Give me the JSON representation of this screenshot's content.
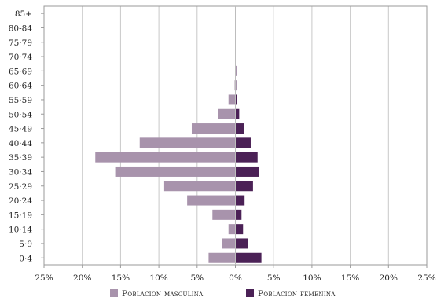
{
  "chart_data": {
    "type": "bar",
    "orientation": "horizontal",
    "layout": "population-pyramid",
    "categories": [
      "85+",
      "80-84",
      "75-79",
      "70-74",
      "65-69",
      "60-64",
      "55-59",
      "50-54",
      "45-49",
      "40-44",
      "35-39",
      "30-34",
      "25-29",
      "20-24",
      "15-19",
      "10-14",
      "5-9",
      "0-4"
    ],
    "category_labels": [
      "85+",
      "80-84",
      "75·79",
      "70·74",
      "65·69",
      "60·64",
      "55·59",
      "50·54",
      "45·49",
      "40·44",
      "35·39",
      "30·34",
      "25·29",
      "20·24",
      "15·19",
      "10·14",
      "5·9",
      "0·4"
    ],
    "series": [
      {
        "name": "Población masculina",
        "color": "#a893ac",
        "side": "left",
        "values": [
          0,
          0,
          0,
          0,
          0,
          0.1,
          0.9,
          2.3,
          5.7,
          12.5,
          18.3,
          15.7,
          9.3,
          6.3,
          3.0,
          0.9,
          1.7,
          3.5
        ]
      },
      {
        "name": "Población femenina",
        "color": "#4b2156",
        "side": "right",
        "values": [
          0,
          0,
          0,
          0,
          0.1,
          0.1,
          0.2,
          0.5,
          1.1,
          2.0,
          2.9,
          3.1,
          2.3,
          1.2,
          0.8,
          1.0,
          1.6,
          3.4
        ]
      }
    ],
    "xlim": [
      -25,
      25
    ],
    "x_tick_values": [
      -25,
      -20,
      -15,
      -10,
      -5,
      0,
      5,
      10,
      15,
      20,
      25
    ],
    "x_tick_labels": [
      "25%",
      "20%",
      "15%",
      "10%",
      "5%",
      "0%",
      "5%",
      "10%",
      "15%",
      "20%",
      "25%"
    ],
    "grid": true,
    "legend_position": "bottom",
    "colors": {
      "grid": "#c8c8c8",
      "border": "#9a9a9a"
    }
  }
}
